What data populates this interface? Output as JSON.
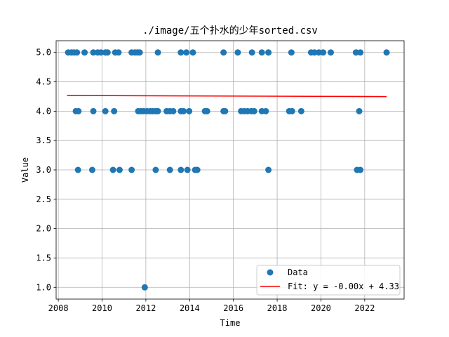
{
  "chart_data": {
    "type": "scatter",
    "title": "./image/五个扑水的少年sorted.csv",
    "xlabel": "Time",
    "ylabel": "Value",
    "xlim": [
      2007.9,
      2023.8
    ],
    "ylim": [
      0.8,
      5.2
    ],
    "x_ticks": [
      2008,
      2010,
      2012,
      2014,
      2016,
      2018,
      2020,
      2022
    ],
    "y_ticks": [
      1.0,
      1.5,
      2.0,
      2.5,
      3.0,
      3.5,
      4.0,
      4.5,
      5.0
    ],
    "x_tick_labels": [
      "2008",
      "2010",
      "2012",
      "2014",
      "2016",
      "2018",
      "2020",
      "2022"
    ],
    "y_tick_labels": [
      "1.0",
      "1.5",
      "2.0",
      "2.5",
      "3.0",
      "3.5",
      "4.0",
      "4.5",
      "5.0"
    ],
    "grid": true,
    "legend_position": "lower-right",
    "series": [
      {
        "name": "Data",
        "kind": "scatter",
        "color": "#1f77b4",
        "points": [
          [
            2008.45,
            5
          ],
          [
            2008.6,
            5
          ],
          [
            2008.72,
            5
          ],
          [
            2008.85,
            5
          ],
          [
            2009.2,
            5
          ],
          [
            2009.6,
            5
          ],
          [
            2009.8,
            5
          ],
          [
            2009.95,
            5
          ],
          [
            2010.15,
            5
          ],
          [
            2010.25,
            5
          ],
          [
            2010.6,
            5
          ],
          [
            2010.75,
            5
          ],
          [
            2011.35,
            5
          ],
          [
            2011.5,
            5
          ],
          [
            2011.62,
            5
          ],
          [
            2011.72,
            5
          ],
          [
            2012.55,
            5
          ],
          [
            2013.6,
            5
          ],
          [
            2013.85,
            5
          ],
          [
            2014.15,
            5
          ],
          [
            2015.55,
            5
          ],
          [
            2016.2,
            5
          ],
          [
            2016.85,
            5
          ],
          [
            2017.3,
            5
          ],
          [
            2017.6,
            5
          ],
          [
            2018.65,
            5
          ],
          [
            2019.55,
            5
          ],
          [
            2019.7,
            5
          ],
          [
            2019.9,
            5
          ],
          [
            2020.1,
            5
          ],
          [
            2020.45,
            5
          ],
          [
            2021.6,
            5
          ],
          [
            2021.8,
            5
          ],
          [
            2023.0,
            5
          ],
          [
            2008.8,
            4
          ],
          [
            2008.92,
            4
          ],
          [
            2009.6,
            4
          ],
          [
            2010.15,
            4
          ],
          [
            2010.55,
            4
          ],
          [
            2011.65,
            4
          ],
          [
            2011.78,
            4
          ],
          [
            2011.9,
            4
          ],
          [
            2012.05,
            4
          ],
          [
            2012.2,
            4
          ],
          [
            2012.32,
            4
          ],
          [
            2012.45,
            4
          ],
          [
            2012.55,
            4
          ],
          [
            2012.95,
            4
          ],
          [
            2013.1,
            4
          ],
          [
            2013.25,
            4
          ],
          [
            2013.6,
            4
          ],
          [
            2013.72,
            4
          ],
          [
            2013.98,
            4
          ],
          [
            2014.7,
            4
          ],
          [
            2014.8,
            4
          ],
          [
            2015.55,
            4
          ],
          [
            2015.62,
            4
          ],
          [
            2016.35,
            4
          ],
          [
            2016.5,
            4
          ],
          [
            2016.65,
            4
          ],
          [
            2016.82,
            4
          ],
          [
            2016.95,
            4
          ],
          [
            2017.3,
            4
          ],
          [
            2017.48,
            4
          ],
          [
            2018.55,
            4
          ],
          [
            2018.68,
            4
          ],
          [
            2019.1,
            4
          ],
          [
            2021.75,
            4
          ],
          [
            2008.9,
            3
          ],
          [
            2009.55,
            3
          ],
          [
            2010.5,
            3
          ],
          [
            2010.8,
            3
          ],
          [
            2011.35,
            3
          ],
          [
            2012.45,
            3
          ],
          [
            2013.1,
            3
          ],
          [
            2013.6,
            3
          ],
          [
            2013.9,
            3
          ],
          [
            2014.25,
            3
          ],
          [
            2014.35,
            3
          ],
          [
            2017.6,
            3
          ],
          [
            2021.65,
            3
          ],
          [
            2021.8,
            3
          ],
          [
            2011.95,
            1
          ]
        ]
      },
      {
        "name": "Fit: y = -0.00x + 4.33",
        "kind": "line",
        "color": "#ff0000",
        "x": [
          2008.4,
          2023.0
        ],
        "y": [
          4.268,
          4.248
        ]
      }
    ]
  }
}
